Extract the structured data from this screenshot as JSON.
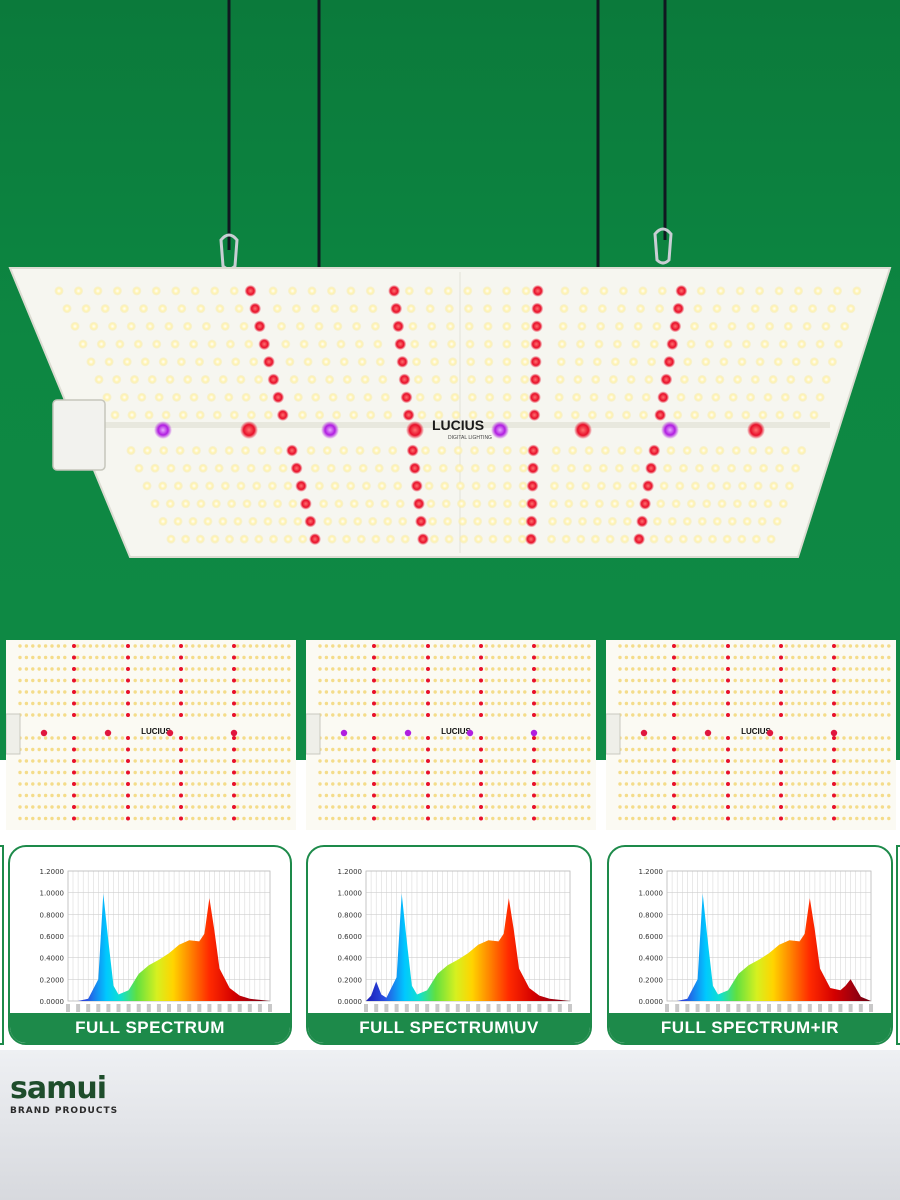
{
  "product": {
    "panel_logo": "LUCIUS",
    "panel_logo_sub": "DIGITAL LIGHTING"
  },
  "colors": {
    "background_green": "#0d8742",
    "panel_white": "#f6f6f0",
    "led_warm": "#fff3b0",
    "led_red": "#e8102a",
    "led_uv": "#b01ee0",
    "card_green": "#1d8a4a"
  },
  "variants": [
    {
      "label": "FULL SPECTRUM",
      "extra_led": "red"
    },
    {
      "label": "FULL SPECTRUM\\UV",
      "extra_led": "uv"
    },
    {
      "label": "FULL SPECTRUM+IR",
      "extra_led": "ir"
    }
  ],
  "chart_data": [
    {
      "type": "area",
      "ylim": [
        0,
        1.2
      ],
      "yticks": [
        "1.2000",
        "1.0000",
        "0.8000",
        "0.6000",
        "0.4000",
        "0.2000",
        "0.0000"
      ],
      "x": [
        380,
        400,
        420,
        440,
        450,
        460,
        470,
        480,
        500,
        520,
        540,
        560,
        580,
        600,
        620,
        640,
        650,
        660,
        670,
        680,
        700,
        720,
        740,
        760,
        780
      ],
      "values": [
        0,
        0,
        0.02,
        0.2,
        0.99,
        0.55,
        0.14,
        0.06,
        0.1,
        0.25,
        0.33,
        0.38,
        0.44,
        0.52,
        0.56,
        0.55,
        0.62,
        0.95,
        0.65,
        0.3,
        0.12,
        0.05,
        0.02,
        0.01,
        0
      ]
    },
    {
      "type": "area",
      "ylim": [
        0,
        1.2
      ],
      "yticks": [
        "1.2000",
        "1.0000",
        "0.8000",
        "0.6000",
        "0.4000",
        "0.2000",
        "0.0000"
      ],
      "x": [
        380,
        390,
        400,
        410,
        420,
        440,
        450,
        460,
        470,
        480,
        500,
        520,
        540,
        560,
        580,
        600,
        620,
        640,
        650,
        660,
        670,
        680,
        700,
        720,
        740,
        760,
        780
      ],
      "values": [
        0,
        0.05,
        0.18,
        0.06,
        0.03,
        0.22,
        0.99,
        0.55,
        0.14,
        0.06,
        0.1,
        0.25,
        0.33,
        0.38,
        0.44,
        0.52,
        0.56,
        0.55,
        0.62,
        0.95,
        0.65,
        0.3,
        0.12,
        0.05,
        0.02,
        0.01,
        0
      ]
    },
    {
      "type": "area",
      "ylim": [
        0,
        1.2
      ],
      "yticks": [
        "1.2000",
        "1.0000",
        "0.8000",
        "0.6000",
        "0.4000",
        "0.2000",
        "0.0000"
      ],
      "x": [
        380,
        400,
        420,
        440,
        450,
        460,
        470,
        480,
        500,
        520,
        540,
        560,
        580,
        600,
        620,
        640,
        650,
        660,
        670,
        680,
        700,
        720,
        730,
        740,
        750,
        760,
        780
      ],
      "values": [
        0,
        0,
        0.02,
        0.2,
        0.99,
        0.55,
        0.14,
        0.06,
        0.1,
        0.25,
        0.33,
        0.38,
        0.44,
        0.52,
        0.56,
        0.55,
        0.62,
        0.95,
        0.65,
        0.3,
        0.12,
        0.1,
        0.14,
        0.2,
        0.12,
        0.04,
        0
      ]
    }
  ],
  "brand": {
    "name": "samui",
    "tagline": "BRAND PRODUCTS"
  }
}
